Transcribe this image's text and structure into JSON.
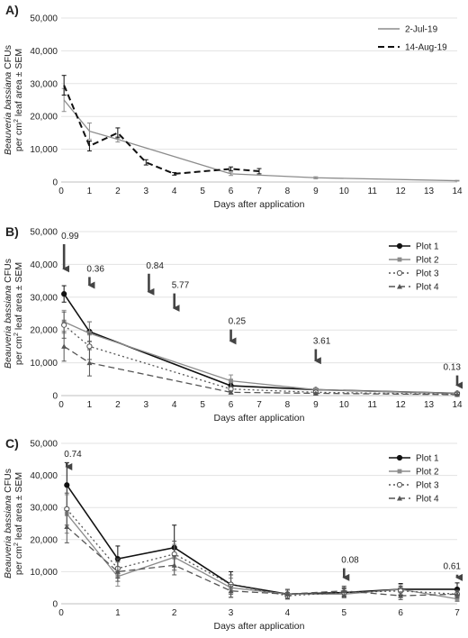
{
  "chart_data": [
    {
      "panel_label": "A)",
      "type": "line",
      "xlabel": "Days after application",
      "ylabel_parts": [
        "Beauveria bassiana",
        " CFUs",
        "per cm",
        "2",
        " leaf area ± SEM"
      ],
      "ylim": [
        0,
        50000
      ],
      "yticks": [
        "0",
        "10,000",
        "20,000",
        "30,000",
        "40,000",
        "50,000"
      ],
      "xlim": [
        0,
        14
      ],
      "xticks": [
        "0",
        "1",
        "2",
        "3",
        "4",
        "5",
        "6",
        "7",
        "8",
        "9",
        "10",
        "11",
        "12",
        "13",
        "14"
      ],
      "legend_position": "top-right",
      "series": [
        {
          "name": "2-Jul-19",
          "color": "#8c8c8c",
          "dash": "solid",
          "marker": "none",
          "points": [
            [
              0.1,
              25000,
              3500
            ],
            [
              1,
              15500,
              2500
            ],
            [
              2,
              13000,
              800
            ],
            [
              6,
              2500,
              500
            ],
            [
              9,
              1300,
              300
            ],
            [
              14,
              400,
              100
            ]
          ]
        },
        {
          "name": "14-Aug-19",
          "color": "#111111",
          "dash": "dashed",
          "marker": "none",
          "points": [
            [
              0.1,
              29500,
              3000
            ],
            [
              1,
              11000,
              1500
            ],
            [
              2,
              15000,
              1500
            ],
            [
              3,
              6000,
              800
            ],
            [
              4,
              2500,
              400
            ],
            [
              6,
              4000,
              600
            ],
            [
              7,
              3300,
              800
            ]
          ]
        }
      ],
      "annotations": []
    },
    {
      "panel_label": "B)",
      "type": "line",
      "xlabel": "Days after application",
      "ylabel_parts": [
        "Beauveria bassiana",
        " CFUs",
        "per cm",
        "2",
        " leaf area ± SEM"
      ],
      "ylim": [
        0,
        50000
      ],
      "yticks": [
        "0",
        "10,000",
        "20,000",
        "30,000",
        "40,000",
        "50,000"
      ],
      "xlim": [
        0,
        14
      ],
      "xticks": [
        "0",
        "1",
        "2",
        "3",
        "4",
        "5",
        "6",
        "7",
        "8",
        "9",
        "10",
        "11",
        "12",
        "13",
        "14"
      ],
      "legend_position": "top-right",
      "series": [
        {
          "name": "Plot 1",
          "color": "#111111",
          "dash": "solid",
          "marker": "circle",
          "points": [
            [
              0.1,
              31000,
              2500
            ],
            [
              1,
              19500,
              3000
            ],
            [
              6,
              3000,
              900
            ],
            [
              9,
              1800,
              400
            ],
            [
              14,
              700,
              150
            ]
          ]
        },
        {
          "name": "Plot 2",
          "color": "#8c8c8c",
          "dash": "solid",
          "marker": "square",
          "points": [
            [
              0.1,
              22500,
              3500
            ],
            [
              1,
              19000,
              3500
            ],
            [
              6,
              4500,
              1800
            ],
            [
              9,
              1800,
              500
            ],
            [
              14,
              700,
              200
            ]
          ]
        },
        {
          "name": "Plot 3",
          "color": "#555555",
          "dash": "dotted",
          "marker": "circle",
          "points": [
            [
              0.1,
              21500,
              4000
            ],
            [
              1,
              15000,
              4000
            ],
            [
              6,
              2000,
              700
            ],
            [
              9,
              1000,
              300
            ],
            [
              14,
              400,
              150
            ]
          ]
        },
        {
          "name": "Plot 4",
          "color": "#555555",
          "dash": "dashed",
          "marker": "triangle",
          "points": [
            [
              0.1,
              15000,
              4500
            ],
            [
              1,
              10000,
              4000
            ],
            [
              6,
              1000,
              400
            ],
            [
              9,
              700,
              200
            ],
            [
              14,
              300,
              100
            ]
          ]
        }
      ],
      "annotations": [
        {
          "text": "0.99",
          "x": 0.1,
          "y_top": 50000,
          "y_bottom": 37000
        },
        {
          "text": "0.36",
          "x": 1,
          "y_top": 40000,
          "y_bottom": 32000
        },
        {
          "text": "0.84",
          "x": 3.1,
          "y_top": 41000,
          "y_bottom": 30000
        },
        {
          "text": "5.77",
          "x": 4.0,
          "y_top": 35000,
          "y_bottom": 25000
        },
        {
          "text": "0.25",
          "x": 6,
          "y_top": 24000,
          "y_bottom": 15000
        },
        {
          "text": "3.61",
          "x": 9,
          "y_top": 18000,
          "y_bottom": 9000
        },
        {
          "text": "0.13",
          "x": 14,
          "y_top": 10000,
          "y_bottom": 1500
        }
      ]
    },
    {
      "panel_label": "C)",
      "type": "line",
      "xlabel": "Days after application",
      "ylabel_parts": [
        "Beauveria bassiana",
        " CFUs",
        "per cm",
        "2",
        " leaf area ± SEM"
      ],
      "ylim": [
        0,
        50000
      ],
      "yticks": [
        "0",
        "10,000",
        "20,000",
        "30,000",
        "40,000",
        "50,000"
      ],
      "xlim": [
        0,
        7
      ],
      "xticks": [
        "0",
        "1",
        "2",
        "3",
        "4",
        "5",
        "6",
        "7"
      ],
      "legend_position": "top-right",
      "series": [
        {
          "name": "Plot 1",
          "color": "#111111",
          "dash": "solid",
          "marker": "circle",
          "points": [
            [
              0.1,
              37000,
              7000
            ],
            [
              1,
              14000,
              4000
            ],
            [
              2,
              17500,
              7000
            ],
            [
              3,
              6000,
              4000
            ],
            [
              4,
              3000,
              1500
            ],
            [
              5,
              3500,
              1500
            ],
            [
              6,
              4500,
              1800
            ],
            [
              7,
              4500,
              2000
            ]
          ]
        },
        {
          "name": "Plot 2",
          "color": "#8c8c8c",
          "dash": "solid",
          "marker": "square",
          "points": [
            [
              0.1,
              28000,
              6000
            ],
            [
              1,
              8500,
              3000
            ],
            [
              2,
              14500,
              4000
            ],
            [
              3,
              5000,
              3000
            ],
            [
              4,
              3000,
              1200
            ],
            [
              5,
              3000,
              1200
            ],
            [
              6,
              4500,
              1500
            ],
            [
              7,
              1500,
              800
            ]
          ]
        },
        {
          "name": "Plot 3",
          "color": "#555555",
          "dash": "dotted",
          "marker": "circle",
          "points": [
            [
              0.1,
              29500,
              5000
            ],
            [
              1,
              11000,
              3000
            ],
            [
              2,
              15500,
              4000
            ],
            [
              3,
              6000,
              3000
            ],
            [
              4,
              2500,
              1000
            ],
            [
              5,
              3500,
              1200
            ],
            [
              6,
              4000,
              1500
            ],
            [
              7,
              3000,
              1000
            ]
          ]
        },
        {
          "name": "Plot 4",
          "color": "#555555",
          "dash": "dashed",
          "marker": "triangle",
          "points": [
            [
              0.1,
              24000,
              5000
            ],
            [
              1,
              10000,
              3000
            ],
            [
              2,
              12000,
              3000
            ],
            [
              3,
              4000,
              2000
            ],
            [
              4,
              3000,
              1500
            ],
            [
              5,
              4000,
              1500
            ],
            [
              6,
              2500,
              1200
            ],
            [
              7,
              3000,
              1200
            ]
          ]
        }
      ],
      "annotations": [
        {
          "text": "0.74",
          "x": 0.1,
          "y_top": 48000,
          "y_bottom": 41000
        },
        {
          "text": "0.08",
          "x": 5,
          "y_top": 15000,
          "y_bottom": 6500
        },
        {
          "text": "0.61",
          "x": 7,
          "y_top": 13000,
          "y_bottom": 6500
        }
      ]
    }
  ]
}
